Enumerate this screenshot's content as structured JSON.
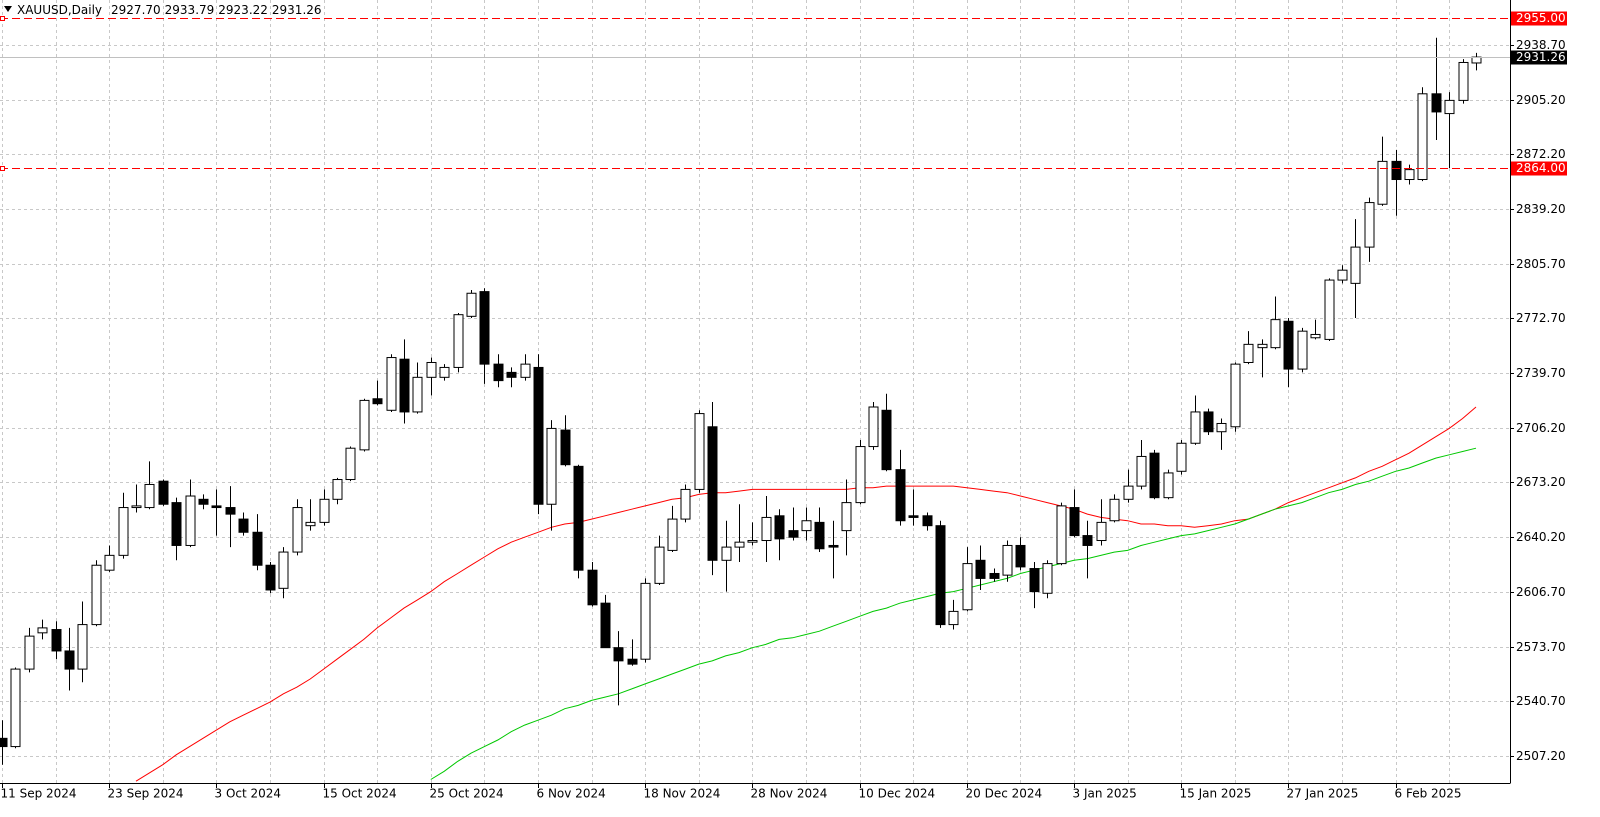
{
  "chart_data": {
    "type": "candlestick",
    "title": "XAUUSD,Daily",
    "header_labels": {
      "open": "2927.70",
      "high": "2933.79",
      "low": "2923.22",
      "close": "2931.26"
    },
    "categories": [
      "11 Sep 2024",
      null,
      null,
      null,
      null,
      null,
      null,
      null,
      "23 Sep 2024",
      null,
      null,
      null,
      null,
      null,
      null,
      null,
      "3 Oct 2024",
      null,
      null,
      null,
      null,
      null,
      null,
      null,
      "15 Oct 2024",
      null,
      null,
      null,
      null,
      null,
      null,
      null,
      "25 Oct 2024",
      null,
      null,
      null,
      null,
      null,
      null,
      null,
      "6 Nov 2024",
      null,
      null,
      null,
      null,
      null,
      null,
      null,
      "18 Nov 2024",
      null,
      null,
      null,
      null,
      null,
      null,
      null,
      "28 Nov 2024",
      null,
      null,
      null,
      null,
      null,
      null,
      null,
      "10 Dec 2024",
      null,
      null,
      null,
      null,
      null,
      null,
      null,
      "20 Dec 2024",
      null,
      null,
      null,
      null,
      null,
      null,
      null,
      "3 Jan 2025",
      null,
      null,
      null,
      null,
      null,
      null,
      null,
      "15 Jan 2025",
      null,
      null,
      null,
      null,
      null,
      null,
      null,
      "27 Jan 2025",
      null,
      null,
      null,
      null,
      null,
      null,
      null,
      "6 Feb 2025",
      null,
      null,
      null,
      null,
      null,
      null
    ],
    "open": [
      2518,
      2513,
      2560,
      2582,
      2584,
      2571,
      2560,
      2587,
      2620,
      2629,
      2658,
      2658,
      2674,
      2661,
      2635,
      2663,
      2659,
      2658,
      2651,
      2643,
      2623,
      2609,
      2631,
      2647,
      2649,
      2663,
      2675,
      2693,
      2724,
      2717,
      2748,
      2716,
      2737,
      2737,
      2743,
      2774,
      2789,
      2745,
      2740,
      2737,
      2743,
      2660,
      2705,
      2683,
      2620,
      2600,
      2573,
      2566,
      2566,
      2612,
      2632,
      2651,
      2669,
      2707,
      2626,
      2634,
      2637,
      2638,
      2653,
      2644,
      2644,
      2649,
      2635,
      2644,
      2661,
      2695,
      2717,
      2681,
      2653,
      2653,
      2647,
      2587,
      2596,
      2626,
      2618,
      2617,
      2635,
      2621,
      2606,
      2624,
      2658,
      2641,
      2638,
      2650,
      2663,
      2671,
      2691,
      2664,
      2680,
      2697,
      2716,
      2704,
      2707,
      2746,
      2755,
      2755,
      2771,
      2742,
      2761,
      2760,
      2796,
      2794,
      2816,
      2842,
      2868,
      2857,
      2857,
      2909,
      2897,
      2905,
      2927.7
    ],
    "high": [
      2529,
      2561,
      2585,
      2590,
      2589,
      2585,
      2601,
      2626,
      2635,
      2667,
      2672,
      2686,
      2675,
      2664,
      2675,
      2666,
      2669,
      2671,
      2655,
      2654,
      2625,
      2634,
      2663,
      2663,
      2669,
      2676,
      2695,
      2724,
      2735,
      2751,
      2760,
      2746,
      2749,
      2745,
      2776,
      2790,
      2791,
      2751,
      2743,
      2751,
      2751,
      2711,
      2714,
      2684,
      2625,
      2605,
      2583,
      2578,
      2615,
      2641,
      2659,
      2672,
      2717,
      2722,
      2650,
      2660,
      2649,
      2665,
      2657,
      2658,
      2658,
      2658,
      2650,
      2675,
      2699,
      2722,
      2727,
      2693,
      2669,
      2655,
      2650,
      2602,
      2634,
      2635,
      2621,
      2638,
      2640,
      2625,
      2626,
      2661,
      2669,
      2650,
      2663,
      2666,
      2681,
      2699,
      2693,
      2681,
      2699,
      2726,
      2718,
      2712,
      2746,
      2765,
      2760,
      2786,
      2773,
      2767,
      2772,
      2797,
      2805,
      2833,
      2846,
      2883,
      2875,
      2866,
      2913,
      2943,
      2910,
      2930,
      2933.79
    ],
    "low": [
      2502,
      2512,
      2558,
      2578,
      2566,
      2547,
      2552,
      2586,
      2619,
      2627,
      2655,
      2657,
      2659,
      2626,
      2634,
      2657,
      2641,
      2634,
      2641,
      2620,
      2606,
      2603,
      2629,
      2644,
      2647,
      2660,
      2674,
      2692,
      2720,
      2716,
      2709,
      2715,
      2726,
      2735,
      2740,
      2773,
      2733,
      2731,
      2731,
      2735,
      2654,
      2644,
      2683,
      2615,
      2598,
      2573,
      2538,
      2562,
      2564,
      2611,
      2631,
      2649,
      2667,
      2617,
      2607,
      2625,
      2635,
      2625,
      2626,
      2638,
      2638,
      2631,
      2615,
      2629,
      2660,
      2693,
      2680,
      2647,
      2647,
      2644,
      2585,
      2584,
      2595,
      2608,
      2613,
      2613,
      2620,
      2597,
      2603,
      2623,
      2640,
      2615,
      2635,
      2649,
      2661,
      2669,
      2663,
      2663,
      2678,
      2696,
      2702,
      2693,
      2704,
      2745,
      2737,
      2754,
      2731,
      2740,
      2760,
      2759,
      2794,
      2773,
      2807,
      2841,
      2835,
      2854,
      2856,
      2881,
      2864,
      2903,
      2923.22
    ],
    "close": [
      2513,
      2560,
      2580,
      2585,
      2571,
      2560,
      2587,
      2623,
      2629,
      2658,
      2659,
      2672,
      2660,
      2635,
      2665,
      2660,
      2658,
      2654,
      2643,
      2623,
      2608,
      2631,
      2658,
      2649,
      2663,
      2675,
      2694,
      2723,
      2721,
      2749,
      2716,
      2737,
      2746,
      2743,
      2775,
      2788,
      2745,
      2735,
      2737,
      2745,
      2660,
      2706,
      2684,
      2620,
      2599,
      2573,
      2565,
      2563,
      2612,
      2634,
      2651,
      2669,
      2715,
      2626,
      2634,
      2637,
      2638,
      2652,
      2639,
      2640,
      2650,
      2633,
      2634,
      2661,
      2695,
      2719,
      2681,
      2650,
      2652,
      2647,
      2587,
      2595,
      2624,
      2615,
      2615,
      2635,
      2622,
      2607,
      2624,
      2659,
      2641,
      2635,
      2649,
      2663,
      2671,
      2689,
      2664,
      2679,
      2697,
      2716,
      2704,
      2709,
      2745,
      2757,
      2757,
      2772,
      2742,
      2765,
      2763,
      2796,
      2802,
      2816,
      2843,
      2868,
      2857,
      2863,
      2909,
      2898,
      2905,
      2928,
      2931.26
    ],
    "lines": [
      {
        "color": "#ff0000",
        "values": [
          null,
          null,
          null,
          null,
          null,
          null,
          null,
          null,
          null,
          null,
          2492,
          2497,
          2502,
          2508,
          2513,
          2518,
          2523,
          2528,
          2532,
          2536,
          2540,
          2545,
          2549,
          2554,
          2560,
          2566,
          2572,
          2578,
          2585,
          2591,
          2597,
          2602,
          2607,
          2613,
          2618,
          2623,
          2628,
          2633,
          2637,
          2640,
          2643,
          2646,
          2648,
          2649,
          2651,
          2653,
          2655,
          2657,
          2659,
          2661,
          2663,
          2664,
          2666,
          2667,
          2667,
          2668,
          2669,
          2669,
          2669,
          2669,
          2669,
          2669,
          2669,
          2669,
          2670,
          2670,
          2671,
          2671,
          2671,
          2671,
          2671,
          2671,
          2670,
          2669,
          2668,
          2667,
          2665,
          2663,
          2661,
          2659,
          2657,
          2654,
          2652,
          2651,
          2650,
          2648,
          2648,
          2647,
          2647,
          2646,
          2647,
          2648,
          2650,
          2651,
          2654,
          2657,
          2661,
          2664,
          2667,
          2670,
          2673,
          2676,
          2680,
          2683,
          2687,
          2691,
          2696,
          2701,
          2706,
          2712,
          2719
        ]
      },
      {
        "color": "#00c800",
        "values": [
          null,
          null,
          null,
          null,
          null,
          null,
          null,
          null,
          null,
          null,
          null,
          null,
          null,
          null,
          null,
          null,
          null,
          null,
          null,
          null,
          null,
          null,
          null,
          null,
          null,
          null,
          null,
          null,
          null,
          null,
          null,
          null,
          2493,
          2498,
          2504,
          2509,
          2513,
          2517,
          2522,
          2526,
          2529,
          2532,
          2536,
          2538,
          2541,
          2543,
          2545,
          2548,
          2551,
          2554,
          2557,
          2560,
          2563,
          2565,
          2568,
          2570,
          2573,
          2575,
          2578,
          2579,
          2581,
          2583,
          2586,
          2589,
          2592,
          2595,
          2597,
          2600,
          2602,
          2604,
          2606,
          2607,
          2609,
          2611,
          2613,
          2615,
          2618,
          2620,
          2622,
          2624,
          2626,
          2627,
          2629,
          2631,
          2632,
          2635,
          2637,
          2639,
          2641,
          2642,
          2644,
          2646,
          2648,
          2651,
          2654,
          2657,
          2659,
          2661,
          2664,
          2667,
          2669,
          2672,
          2674,
          2677,
          2680,
          2682,
          2685,
          2688,
          2690,
          2692,
          2694
        ]
      }
    ],
    "up_color": "#ffffff",
    "down_color": "#000000",
    "ylim": [
      2490.9,
      2965.9
    ],
    "yticks": [
      {
        "value": 2507.2,
        "label": "2507.20"
      },
      {
        "value": 2540.7,
        "label": "2540.70"
      },
      {
        "value": 2573.7,
        "label": "2573.70"
      },
      {
        "value": 2606.7,
        "label": "2606.70"
      },
      {
        "value": 2640.2,
        "label": "2640.20"
      },
      {
        "value": 2673.2,
        "label": "2673.20"
      },
      {
        "value": 2706.2,
        "label": "2706.20"
      },
      {
        "value": 2739.7,
        "label": "2739.70"
      },
      {
        "value": 2772.7,
        "label": "2772.70"
      },
      {
        "value": 2805.7,
        "label": "2805.70"
      },
      {
        "value": 2839.2,
        "label": "2839.20"
      },
      {
        "value": 2872.2,
        "label": "2872.20"
      },
      {
        "value": 2905.2,
        "label": "2905.20"
      },
      {
        "value": 2938.7,
        "label": "2938.70"
      }
    ],
    "hlines": [
      {
        "value": 2955,
        "label": "2955.00",
        "color": "#ff0000"
      },
      {
        "value": 2864,
        "label": "2864.00",
        "color": "#ff0000"
      }
    ],
    "price_line": {
      "value": 2931.26,
      "label": "2931.26"
    },
    "grid": true
  }
}
